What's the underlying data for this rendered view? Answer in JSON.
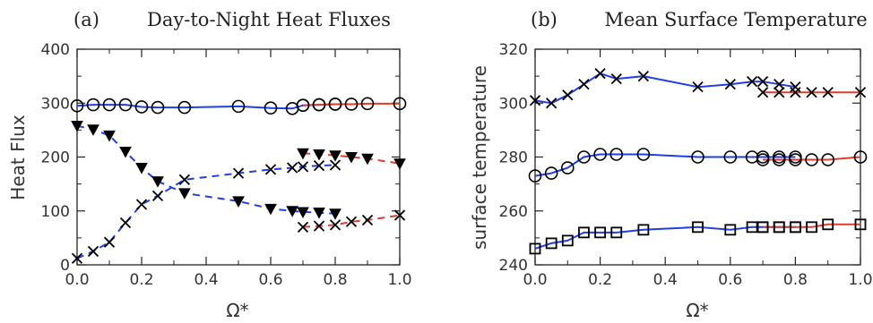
{
  "chart_data": [
    {
      "type": "line",
      "panel_label": "(a)",
      "title": "Day-to-Night Heat Fluxes",
      "xlabel": "Ω*",
      "ylabel": "Heat Flux",
      "xlim": [
        0,
        1
      ],
      "ylim": [
        0,
        400
      ],
      "xticks": [
        "0.0",
        "0.2",
        "0.4",
        "0.6",
        "0.8",
        "1.0"
      ],
      "yticks": [
        "0",
        "100",
        "200",
        "300",
        "400"
      ],
      "grid": false,
      "colors": {
        "blue": "#1f3fe6",
        "red": "#e23b2e",
        "marker": "#000000"
      },
      "series": [
        {
          "marker": "circle",
          "segments": [
            {
              "color": "blue",
              "dash": false,
              "points": [
                [
                  0,
                  295
                ],
                [
                  0.05,
                  297
                ],
                [
                  0.1,
                  297
                ],
                [
                  0.15,
                  297
                ],
                [
                  0.2,
                  293
                ],
                [
                  0.25,
                  292
                ],
                [
                  0.333,
                  292
                ],
                [
                  0.5,
                  294
                ],
                [
                  0.6,
                  291
                ],
                [
                  0.667,
                  290
                ],
                [
                  0.7,
                  296
                ],
                [
                  0.75,
                  297
                ],
                [
                  0.8,
                  298
                ]
              ]
            },
            {
              "color": "red",
              "dash": false,
              "points": [
                [
                  0.7,
                  296
                ],
                [
                  0.75,
                  297
                ],
                [
                  0.8,
                  298
                ],
                [
                  0.85,
                  298
                ],
                [
                  0.9,
                  299
                ],
                [
                  1.0,
                  299
                ]
              ]
            }
          ]
        },
        {
          "marker": "triangle-down",
          "segments": [
            {
              "color": "blue",
              "dash": true,
              "points": [
                [
                  0,
                  258
                ],
                [
                  0.05,
                  251
                ],
                [
                  0.1,
                  240
                ],
                [
                  0.15,
                  210
                ],
                [
                  0.2,
                  180
                ],
                [
                  0.25,
                  155
                ],
                [
                  0.333,
                  133
                ],
                [
                  0.5,
                  118
                ],
                [
                  0.6,
                  104
                ],
                [
                  0.667,
                  100
                ],
                [
                  0.7,
                  98
                ],
                [
                  0.75,
                  97
                ],
                [
                  0.8,
                  95
                ]
              ]
            },
            {
              "color": "red",
              "dash": true,
              "points": [
                [
                  0.7,
                  207
                ],
                [
                  0.75,
                  205
                ],
                [
                  0.8,
                  203
                ],
                [
                  0.85,
                  200
                ],
                [
                  0.9,
                  197
                ],
                [
                  1.0,
                  188
                ]
              ]
            }
          ]
        },
        {
          "marker": "cross",
          "segments": [
            {
              "color": "blue",
              "dash": true,
              "points": [
                [
                  0,
                  12
                ],
                [
                  0.05,
                  25
                ],
                [
                  0.1,
                  42
                ],
                [
                  0.15,
                  78
                ],
                [
                  0.2,
                  112
                ],
                [
                  0.25,
                  128
                ],
                [
                  0.333,
                  158
                ],
                [
                  0.5,
                  170
                ],
                [
                  0.6,
                  177
                ],
                [
                  0.667,
                  180
                ],
                [
                  0.7,
                  182
                ],
                [
                  0.75,
                  184
                ],
                [
                  0.8,
                  185
                ]
              ]
            },
            {
              "color": "red",
              "dash": true,
              "points": [
                [
                  0.7,
                  70
                ],
                [
                  0.75,
                  72
                ],
                [
                  0.8,
                  74
                ],
                [
                  0.85,
                  80
                ],
                [
                  0.9,
                  83
                ],
                [
                  1.0,
                  92
                ]
              ]
            }
          ]
        }
      ]
    },
    {
      "type": "line",
      "panel_label": "(b)",
      "title": "Mean Surface Temperature",
      "xlabel": "Ω*",
      "ylabel": "surface temperature",
      "xlim": [
        0,
        1
      ],
      "ylim": [
        240,
        320
      ],
      "xticks": [
        "0.0",
        "0.2",
        "0.4",
        "0.6",
        "0.8",
        "1.0"
      ],
      "yticks": [
        "240",
        "260",
        "280",
        "300",
        "320"
      ],
      "grid": false,
      "colors": {
        "blue": "#1f3fe6",
        "red": "#e23b2e",
        "marker": "#000000"
      },
      "series": [
        {
          "marker": "cross",
          "segments": [
            {
              "color": "blue",
              "dash": false,
              "points": [
                [
                  0,
                  301
                ],
                [
                  0.05,
                  300
                ],
                [
                  0.1,
                  303
                ],
                [
                  0.15,
                  307
                ],
                [
                  0.2,
                  311
                ],
                [
                  0.25,
                  309
                ],
                [
                  0.333,
                  310
                ],
                [
                  0.5,
                  306
                ],
                [
                  0.6,
                  307
                ],
                [
                  0.667,
                  308
                ],
                [
                  0.7,
                  308
                ],
                [
                  0.75,
                  307
                ],
                [
                  0.8,
                  306
                ]
              ]
            },
            {
              "color": "red",
              "dash": false,
              "points": [
                [
                  0.7,
                  304
                ],
                [
                  0.75,
                  304
                ],
                [
                  0.8,
                  304
                ],
                [
                  0.85,
                  304
                ],
                [
                  0.9,
                  304
                ],
                [
                  1.0,
                  304
                ]
              ]
            }
          ]
        },
        {
          "marker": "circle",
          "segments": [
            {
              "color": "blue",
              "dash": false,
              "points": [
                [
                  0,
                  273
                ],
                [
                  0.05,
                  274
                ],
                [
                  0.1,
                  276
                ],
                [
                  0.15,
                  280
                ],
                [
                  0.2,
                  281
                ],
                [
                  0.25,
                  281
                ],
                [
                  0.333,
                  281
                ],
                [
                  0.5,
                  280
                ],
                [
                  0.6,
                  280
                ],
                [
                  0.667,
                  280
                ],
                [
                  0.7,
                  280
                ],
                [
                  0.75,
                  280
                ],
                [
                  0.8,
                  280
                ]
              ]
            },
            {
              "color": "red",
              "dash": false,
              "points": [
                [
                  0.7,
                  279
                ],
                [
                  0.75,
                  279
                ],
                [
                  0.8,
                  279
                ],
                [
                  0.85,
                  279
                ],
                [
                  0.9,
                  279
                ],
                [
                  1.0,
                  280
                ]
              ]
            }
          ]
        },
        {
          "marker": "square",
          "segments": [
            {
              "color": "blue",
              "dash": false,
              "points": [
                [
                  0,
                  246
                ],
                [
                  0.05,
                  248
                ],
                [
                  0.1,
                  249
                ],
                [
                  0.15,
                  252
                ],
                [
                  0.2,
                  252
                ],
                [
                  0.25,
                  252
                ],
                [
                  0.333,
                  253
                ],
                [
                  0.5,
                  254
                ],
                [
                  0.6,
                  253
                ],
                [
                  0.667,
                  254
                ],
                [
                  0.7,
                  254
                ],
                [
                  0.75,
                  254
                ],
                [
                  0.8,
                  254
                ]
              ]
            },
            {
              "color": "red",
              "dash": false,
              "points": [
                [
                  0.7,
                  254
                ],
                [
                  0.75,
                  254
                ],
                [
                  0.8,
                  254
                ],
                [
                  0.85,
                  254
                ],
                [
                  0.9,
                  255
                ],
                [
                  1.0,
                  255
                ]
              ]
            }
          ]
        }
      ]
    }
  ]
}
